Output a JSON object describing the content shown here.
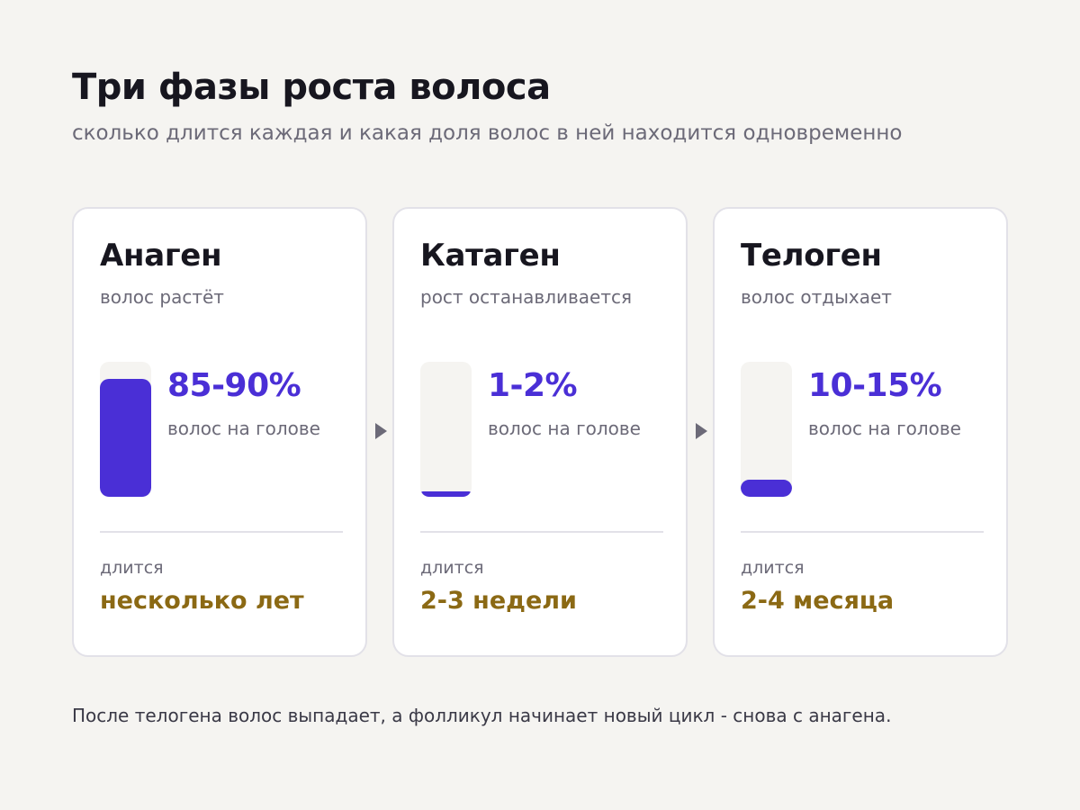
{
  "title": "Три фазы роста волоса",
  "subtitle": "сколько длится каждая и какая доля волос в ней находится одновременно",
  "colors": {
    "accent": "#4a2fd6",
    "duration": "#8b6914",
    "muted": "#6c6a78",
    "background": "#f5f4f1"
  },
  "phases": [
    {
      "name": "Анаген",
      "description": "волос растёт",
      "share": "85-90%",
      "share_fraction": 0.875,
      "share_label": "волос на голове",
      "duration_label": "длится",
      "duration": "несколько лет"
    },
    {
      "name": "Катаген",
      "description": "рост останавливается",
      "share": "1-2%",
      "share_fraction": 0.015,
      "share_label": "волос на голове",
      "duration_label": "длится",
      "duration": "2-3 недели"
    },
    {
      "name": "Телоген",
      "description": "волос отдыхает",
      "share": "10-15%",
      "share_fraction": 0.125,
      "share_label": "волос на голове",
      "duration_label": "длится",
      "duration": "2-4 месяца"
    }
  ],
  "arrow_icon": "triangle-right",
  "footnote": "После телогена волос выпадает, а фолликул начинает новый цикл - снова с анагена."
}
